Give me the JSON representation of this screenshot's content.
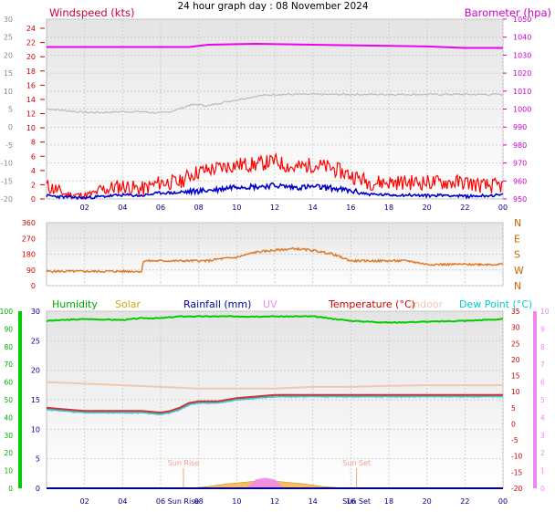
{
  "title": "24 hour graph day : 08 November 2024",
  "chart_data": [
    {
      "type": "line",
      "panel": "wind-baro",
      "grid": true,
      "legend": [
        {
          "name": "Windspeed (kts)",
          "color": "#cc0033",
          "position": "top-left"
        },
        {
          "name": "Barometer (hpa)",
          "color": "#cc00cc",
          "position": "top-right"
        }
      ],
      "y_left_outer": {
        "ticks": [
          "30",
          "25",
          "20",
          "15",
          "10",
          "5",
          "0",
          "-5",
          "-10",
          "-15",
          "-20"
        ],
        "color": "#888888"
      },
      "y_left_inner": {
        "ticks": [
          "24",
          "22",
          "20",
          "18",
          "16",
          "14",
          "12",
          "10",
          "8",
          "6",
          "4",
          "2",
          "0"
        ],
        "color": "#cc0000",
        "range": [
          0,
          24
        ]
      },
      "y_right": {
        "ticks": [
          "1050",
          "1040",
          "1030",
          "1020",
          "1010",
          "1000",
          "990",
          "980",
          "970",
          "960",
          "950"
        ],
        "color": "#cc00cc",
        "range": [
          950,
          1050
        ]
      },
      "x_ticks": [
        "02",
        "04",
        "06",
        "08",
        "10",
        "12",
        "14",
        "16",
        "18",
        "20",
        "22",
        "00"
      ],
      "series": [
        {
          "name": "Barometer (hpa)",
          "color": "#ee00ee",
          "axis": "right",
          "x": [
            0,
            4,
            7.5,
            8.5,
            11,
            16,
            20,
            22,
            24
          ],
          "values": [
            1034.5,
            1034.5,
            1034.5,
            1035.8,
            1036.3,
            1035.5,
            1034.8,
            1034.0,
            1034.0
          ]
        },
        {
          "name": "Temperature (grey)",
          "color": "#bbbbbb",
          "axis": "outer",
          "x": [
            0,
            1,
            2,
            3,
            4,
            5,
            5.5,
            6,
            6.5,
            7,
            7.5,
            8,
            8.5,
            9,
            10,
            11,
            12,
            14,
            16,
            18,
            20,
            22,
            24
          ],
          "values": [
            5.0,
            4.5,
            4.0,
            4.0,
            4.2,
            4.2,
            4.0,
            3.8,
            4.2,
            5.0,
            6.0,
            6.2,
            5.8,
            6.5,
            7.5,
            8.5,
            9.0,
            9.0,
            9.0,
            9.0,
            9.0,
            9.0,
            9.0
          ]
        },
        {
          "name": "Wind gust",
          "color": "#ff0000",
          "axis": "inner",
          "x": [
            0,
            1,
            2,
            3,
            4,
            5,
            6,
            7,
            7.5,
            8,
            9,
            10,
            11,
            12,
            13,
            14,
            15,
            16,
            17,
            18,
            19,
            20,
            21,
            22,
            23,
            24
          ],
          "values": [
            1.5,
            0.5,
            0.3,
            1.0,
            1.5,
            1.0,
            2.0,
            2.0,
            3.0,
            3.5,
            4.0,
            4.5,
            4.5,
            5.0,
            4.0,
            4.5,
            4.0,
            3.0,
            2.0,
            2.0,
            2.0,
            2.0,
            2.0,
            2.0,
            1.5,
            1.5
          ]
        },
        {
          "name": "Wind average",
          "color": "#0000cc",
          "axis": "inner",
          "x": [
            0,
            1,
            2,
            3,
            4,
            5,
            6,
            7,
            8,
            9,
            10,
            11,
            12,
            13,
            14,
            15,
            16,
            17,
            18,
            19,
            20,
            21,
            22,
            23,
            24
          ],
          "values": [
            0.4,
            0.2,
            0.1,
            0.3,
            0.5,
            0.4,
            0.8,
            0.8,
            1.0,
            1.2,
            1.7,
            1.6,
            1.8,
            1.5,
            1.6,
            1.4,
            1.0,
            0.6,
            0.5,
            0.5,
            0.4,
            0.5,
            0.3,
            0.4,
            0.5
          ]
        }
      ]
    },
    {
      "type": "line",
      "panel": "wind-direction",
      "grid": true,
      "y_left": {
        "ticks": [
          "360",
          "270",
          "180",
          "90",
          "0"
        ],
        "color": "#cc0000",
        "range": [
          0,
          360
        ]
      },
      "y_right": {
        "labels": [
          "N",
          "W",
          "S",
          "E",
          "N"
        ],
        "color": "#cc6600"
      },
      "series": [
        {
          "name": "Wind direction",
          "color": "#dd7722",
          "x": [
            0,
            1,
            2,
            3,
            4,
            5,
            5.1,
            6,
            7,
            8,
            8.5,
            9,
            10,
            11,
            12,
            13,
            14,
            15,
            16,
            17,
            18,
            19,
            20,
            21,
            22,
            23,
            24
          ],
          "values": [
            80,
            80,
            80,
            80,
            80,
            80,
            140,
            140,
            140,
            140,
            140,
            150,
            160,
            190,
            200,
            210,
            200,
            180,
            140,
            140,
            140,
            140,
            120,
            120,
            120,
            120,
            120
          ]
        }
      ]
    },
    {
      "type": "line",
      "panel": "temp-humidity",
      "grid": true,
      "legend": [
        {
          "name": "Humidity",
          "color": "#00aa00",
          "position": "top"
        },
        {
          "name": "Solar",
          "color": "#ccaa00",
          "position": "top"
        },
        {
          "name": "Rainfall (mm)",
          "color": "#000099",
          "position": "top"
        },
        {
          "name": "UV",
          "color": "#ee88ee",
          "position": "top"
        },
        {
          "name": "Temperature (°C)",
          "color": "#cc0000",
          "position": "top"
        },
        {
          "name": "Indoor",
          "color": "#f0c8b0",
          "position": "top"
        },
        {
          "name": "Dew Point (°C)",
          "color": "#00cccc",
          "position": "top"
        }
      ],
      "y_far_left": {
        "ticks": [
          "100",
          "90",
          "80",
          "70",
          "60",
          "50",
          "40",
          "30",
          "20",
          "10",
          "0"
        ],
        "color": "#00aa00",
        "range": [
          0,
          100
        ]
      },
      "y_left": {
        "ticks": [
          "30",
          "25",
          "20",
          "15",
          "10",
          "5",
          "0"
        ],
        "color": "#000099",
        "range": [
          0,
          30
        ]
      },
      "y_right": {
        "ticks": [
          "35",
          "30",
          "25",
          "20",
          "15",
          "10",
          "5",
          "0",
          "-5",
          "-10",
          "-15",
          "-20"
        ],
        "color": "#cc0000",
        "range": [
          -20,
          35
        ]
      },
      "y_far_right": {
        "ticks": [
          "10",
          "9",
          "8",
          "7",
          "6",
          "5",
          "4",
          "3",
          "2",
          "1",
          "0"
        ],
        "color": "#ee88ee",
        "range": [
          0,
          10
        ]
      },
      "x_ticks": [
        "02",
        "04",
        "06",
        "08",
        "10",
        "12",
        "14",
        "16",
        "18",
        "20",
        "22",
        "00"
      ],
      "annotations": [
        "Sun Rise",
        "Sun Set"
      ],
      "series": [
        {
          "name": "Humidity",
          "color": "#00cc00",
          "axis": "far_left",
          "x": [
            0,
            2,
            4,
            5,
            6,
            7,
            8,
            10,
            12,
            14,
            16,
            18,
            20,
            22,
            24
          ],
          "values": [
            94.5,
            95.5,
            95.0,
            96.0,
            96.0,
            97.0,
            97.0,
            97.0,
            97.0,
            97.0,
            94.5,
            93.5,
            94.0,
            94.5,
            95.5
          ]
        },
        {
          "name": "Indoor",
          "color": "#f0c8b0",
          "axis": "right",
          "x": [
            0,
            2,
            4,
            6,
            8,
            10,
            12,
            14,
            16,
            18,
            20,
            22,
            24
          ],
          "values": [
            13.0,
            12.5,
            12.0,
            11.5,
            11.0,
            11.0,
            11.0,
            11.5,
            11.5,
            11.8,
            12.0,
            12.0,
            12.0
          ]
        },
        {
          "name": "Temperature (°C)",
          "color": "#cc3333",
          "axis": "right",
          "x": [
            0,
            1,
            2,
            3,
            4,
            5,
            6,
            6.5,
            7,
            7.5,
            8,
            9,
            10,
            11,
            12,
            14,
            16,
            18,
            20,
            22,
            24
          ],
          "values": [
            5.0,
            4.5,
            4.0,
            4.0,
            4.0,
            4.0,
            3.5,
            4.0,
            5.0,
            6.5,
            7.0,
            7.0,
            8.0,
            8.5,
            9.0,
            9.0,
            9.0,
            9.0,
            9.0,
            9.0,
            9.0
          ]
        },
        {
          "name": "Dew Point (°C)",
          "color": "#33cccc",
          "axis": "right",
          "x": [
            0,
            1,
            2,
            3,
            4,
            5,
            6,
            6.5,
            7,
            7.5,
            8,
            9,
            10,
            11,
            12,
            14,
            16,
            18,
            20,
            22,
            24
          ],
          "values": [
            4.5,
            4.0,
            3.5,
            3.5,
            3.5,
            3.5,
            3.0,
            3.5,
            4.5,
            6.0,
            6.5,
            6.5,
            7.5,
            8.0,
            8.5,
            8.5,
            8.5,
            8.5,
            8.5,
            8.5,
            8.5
          ]
        },
        {
          "name": "Rainfall (mm)",
          "color": "#000099",
          "axis": "left",
          "x": [
            0,
            24
          ],
          "values": [
            0,
            0
          ]
        },
        {
          "name": "Solar",
          "color": "#f0b040",
          "axis": "far_left",
          "kind": "area",
          "x": [
            7.5,
            8.5,
            9.5,
            10.5,
            11,
            11.5,
            12,
            12.5,
            13.5,
            14.5,
            15.5,
            16
          ],
          "values": [
            0,
            1.0,
            2.5,
            3.5,
            4.0,
            4.5,
            4.0,
            3.5,
            2.5,
            1.0,
            0.2,
            0
          ]
        },
        {
          "name": "UV",
          "color": "#ee88ee",
          "axis": "far_right",
          "kind": "area",
          "x": [
            10.5,
            11,
            11.5,
            12,
            12.5
          ],
          "values": [
            0,
            0.5,
            0.6,
            0.5,
            0
          ]
        }
      ]
    }
  ]
}
